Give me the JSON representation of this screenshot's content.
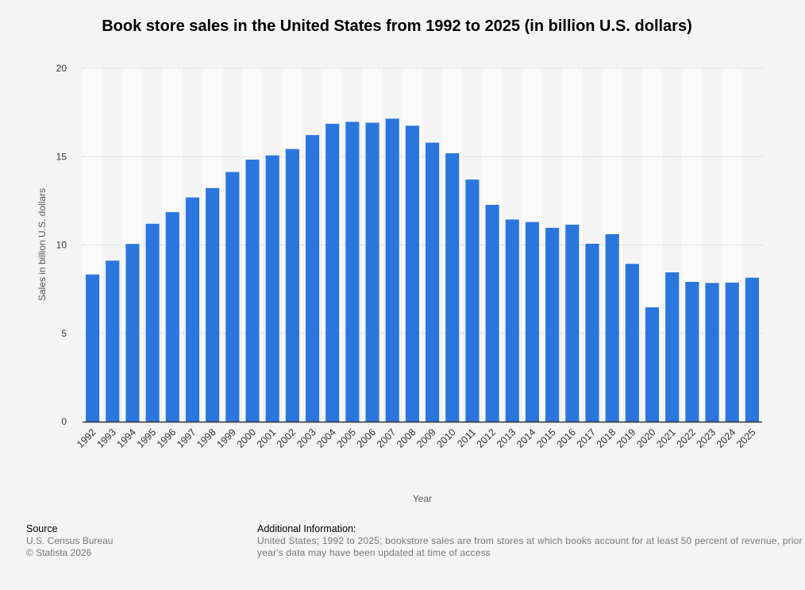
{
  "chart_data": {
    "type": "bar",
    "title": "Book store sales in the United States from 1992 to 2025 (in billion U.S. dollars)",
    "xlabel": "Year",
    "ylabel": "Sales in billion U.S. dollars",
    "ylim": [
      0,
      20
    ],
    "yticks": [
      0,
      5,
      10,
      15,
      20
    ],
    "ytick_labels": [
      "0",
      "5",
      "10",
      "15",
      "20"
    ],
    "grid": true,
    "bar_color": "#2a76dd",
    "categories": [
      "1992",
      "1993",
      "1994",
      "1995",
      "1996",
      "1997",
      "1998",
      "1999",
      "2000",
      "2001",
      "2002",
      "2003",
      "2004",
      "2005",
      "2006",
      "2007",
      "2008",
      "2009",
      "2010",
      "2011",
      "2012",
      "2013",
      "2014",
      "2015",
      "2016",
      "2017",
      "2018",
      "2019",
      "2020",
      "2021",
      "2022",
      "2023",
      "2024",
      "2025"
    ],
    "values": [
      8.33,
      9.11,
      10.06,
      11.2,
      11.86,
      12.69,
      13.22,
      14.13,
      14.83,
      15.07,
      15.43,
      16.22,
      16.86,
      16.97,
      16.92,
      17.15,
      16.75,
      15.79,
      15.19,
      13.7,
      12.27,
      11.44,
      11.3,
      10.97,
      11.15,
      10.07,
      10.61,
      8.93,
      6.47,
      8.45,
      7.91,
      7.85,
      7.87,
      8.15
    ]
  },
  "footer": {
    "source_heading": "Source",
    "source_lines": [
      "U.S. Census Bureau",
      "© Statista 2026"
    ],
    "info_heading": "Additional Information:",
    "info_text": "United States; 1992 to 2025; bookstore sales are from stores at which books account for at least 50 percent of revenue, prior year's data may have been updated at time of access"
  }
}
